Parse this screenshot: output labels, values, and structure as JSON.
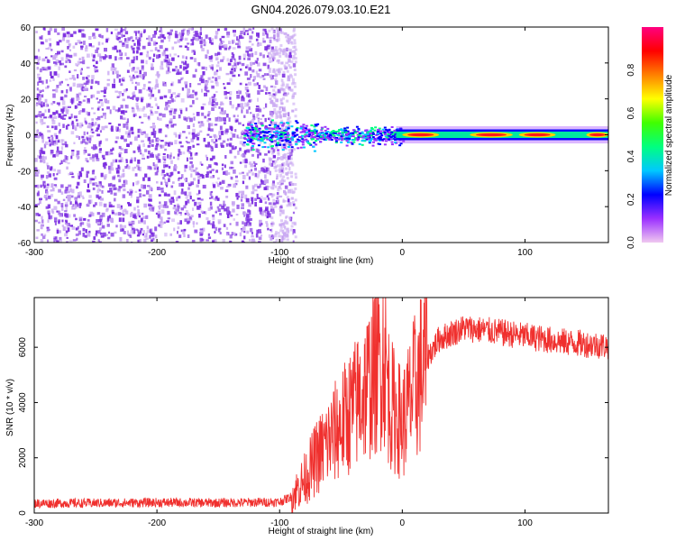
{
  "title": "GN04.2026.079.03.10.E21",
  "colors": {
    "scatter": "#7a2be0",
    "scatter_light": "#c9a8f2",
    "snr_line": "#f0302e",
    "frame": "#000000"
  },
  "chart_data": [
    {
      "type": "heatmap",
      "title": "",
      "xlabel": "Height of straight line (km)",
      "ylabel": "Frequency (Hz)",
      "xlim": [
        -300,
        168
      ],
      "ylim": [
        -60,
        60
      ],
      "xticks": [
        -300,
        -200,
        -100,
        0,
        100
      ],
      "yticks": [
        -60,
        -40,
        -20,
        0,
        20,
        40,
        60
      ],
      "noise_region_km": [
        -300,
        -95
      ],
      "signal_band_center_hz": 0,
      "signal_band_halfwidth_hz": 3,
      "colorbar": {
        "label": "Normalized spectral amplitude",
        "range": [
          0.0,
          1.0
        ],
        "ticks": [
          "0.0",
          "0.2",
          "0.4",
          "0.6",
          "0.8"
        ],
        "colormap": [
          "#f0c8f0",
          "#9b30ff",
          "#0000ff",
          "#00c8ff",
          "#00ff80",
          "#40ff00",
          "#ffff00",
          "#ff8000",
          "#ff0000",
          "#ff0080"
        ]
      }
    },
    {
      "type": "line",
      "title": "",
      "xlabel": "Height of straight line (km)",
      "ylabel": "SNR (10 * v/v)",
      "xlim": [
        -300,
        168
      ],
      "ylim": [
        0,
        7800
      ],
      "xticks": [
        -300,
        -200,
        -100,
        0,
        100
      ],
      "yticks": [
        0,
        2000,
        4000,
        6000
      ],
      "series": [
        {
          "name": "SNR",
          "x": [
            -300,
            -250,
            -200,
            -150,
            -100,
            -90,
            -80,
            -70,
            -60,
            -50,
            -40,
            -30,
            -20,
            -15,
            -10,
            0,
            10,
            20,
            30,
            50,
            70,
            100,
            130,
            168
          ],
          "values": [
            350,
            360,
            380,
            370,
            400,
            600,
            1200,
            2000,
            2600,
            3200,
            3800,
            4500,
            5300,
            5800,
            4000,
            3200,
            4500,
            5600,
            6300,
            6700,
            6600,
            6400,
            6200,
            6050
          ]
        }
      ]
    }
  ]
}
